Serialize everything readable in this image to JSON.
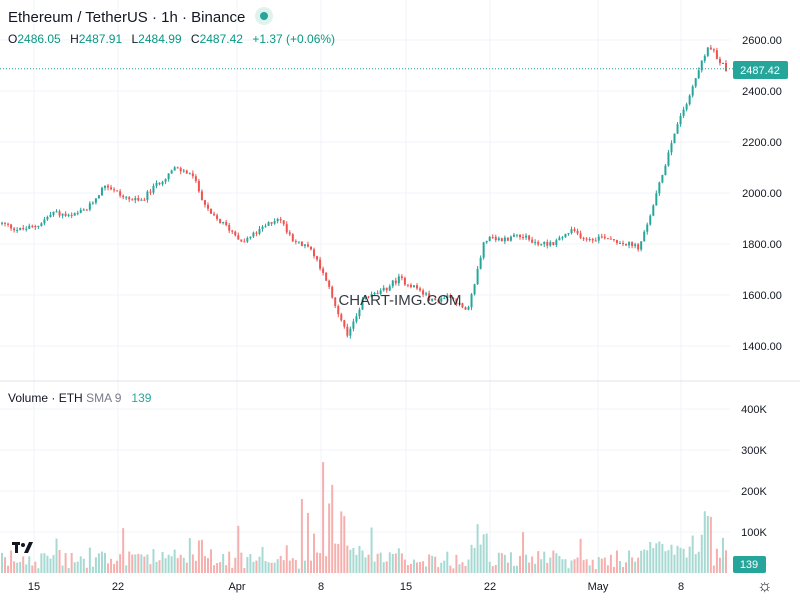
{
  "header": {
    "title": "Ethereum / TetherUS · 1h · Binance",
    "ohlc": {
      "o_label": "O",
      "o_value": "2486.05",
      "h_label": "H",
      "h_value": "2487.91",
      "l_label": "L",
      "l_value": "2484.99",
      "c_label": "C",
      "c_value": "2487.42",
      "change": "+1.37 (+0.06%)"
    }
  },
  "volume_legend": {
    "name": "Volume",
    "sep": "·",
    "symbol": "ETH",
    "sma": "SMA 9",
    "value": "139"
  },
  "watermark": "CHART-IMG.COM",
  "price_axis": {
    "ticks": [
      "2600.00",
      "2400.00",
      "2200.00",
      "2000.00",
      "1800.00",
      "1600.00",
      "1400.00"
    ],
    "last_price": "2487.42"
  },
  "volume_axis": {
    "ticks": [
      "400K",
      "300K",
      "200K",
      "100K"
    ],
    "last_value": "139"
  },
  "time_axis": {
    "labels": [
      "15",
      "22",
      "Apr",
      "8",
      "15",
      "22",
      "May",
      "8"
    ]
  },
  "icons": {
    "status": "live-dot-icon",
    "logo": "tradingview-logo-icon",
    "settings": "gear-icon"
  },
  "colors": {
    "up": "#26a69a",
    "down": "#ef5350",
    "vol_up": "#a7d9d3",
    "vol_down": "#f5b0ae",
    "grid": "#f0f3fa"
  },
  "chart_data": {
    "type": "candlestick",
    "title": "Ethereum / TetherUS · 1h · Binance",
    "ylim": [
      1300,
      2700
    ],
    "volume_ylim": [
      0,
      430000
    ],
    "x_ticks": [
      "15",
      "22",
      "Apr",
      "8",
      "15",
      "22",
      "May",
      "8"
    ],
    "last_close": 2487.42,
    "price_path": [
      1880,
      1855,
      1870,
      1925,
      1905,
      1940,
      2035,
      1985,
      1965,
      2035,
      2095,
      2075,
      1920,
      1870,
      1810,
      1855,
      1905,
      1810,
      1775,
      1620,
      1440,
      1590,
      1610,
      1665,
      1630,
      1575,
      1600,
      1525,
      1820,
      1815,
      1840,
      1800,
      1805,
      1850,
      1820,
      1830,
      1805,
      1785,
      2000,
      2240,
      2405,
      2580,
      2487
    ]
  }
}
